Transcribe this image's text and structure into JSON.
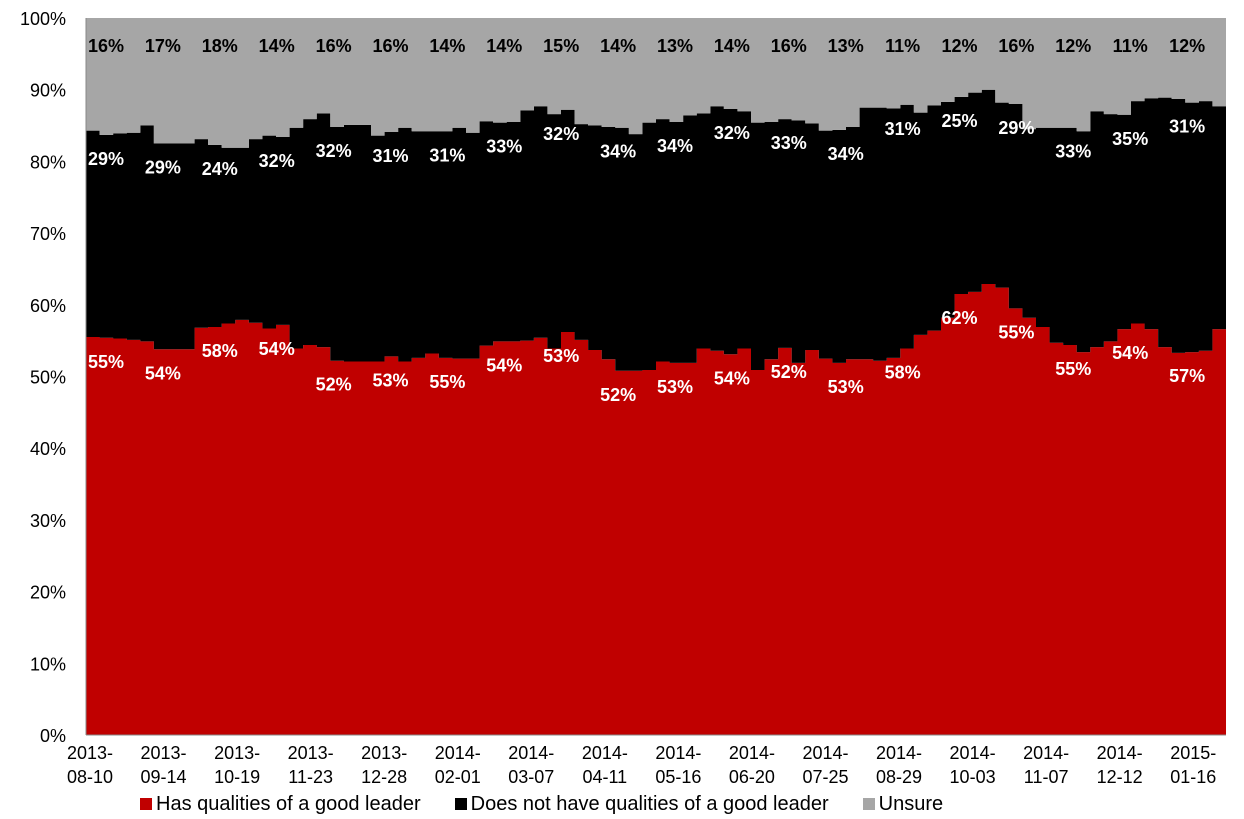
{
  "chart_data": {
    "type": "area",
    "stacked": true,
    "ylim": [
      0,
      100
    ],
    "yticks": [
      "0%",
      "10%",
      "20%",
      "30%",
      "40%",
      "50%",
      "60%",
      "70%",
      "80%",
      "90%",
      "100%"
    ],
    "x_tick_labels": [
      [
        "2013-",
        "08-10"
      ],
      [
        "2013-",
        "09-14"
      ],
      [
        "2013-",
        "10-19"
      ],
      [
        "2013-",
        "11-23"
      ],
      [
        "2013-",
        "12-28"
      ],
      [
        "2014-",
        "02-01"
      ],
      [
        "2014-",
        "03-07"
      ],
      [
        "2014-",
        "04-11"
      ],
      [
        "2014-",
        "05-16"
      ],
      [
        "2014-",
        "06-20"
      ],
      [
        "2014-",
        "07-25"
      ],
      [
        "2014-",
        "08-29"
      ],
      [
        "2014-",
        "10-03"
      ],
      [
        "2014-",
        "11-07"
      ],
      [
        "2014-",
        "12-12"
      ],
      [
        "2015-",
        "01-16"
      ]
    ],
    "colors": {
      "has": "#c00000",
      "not": "#000000",
      "unsure": "#a6a6a6"
    },
    "series": [
      {
        "name": "Has qualities of a good leader",
        "values": [
          55.5,
          55.4,
          55.3,
          55.1,
          54.9,
          53.8,
          53.8,
          53.8,
          56.8,
          56.9,
          57.4,
          57.9,
          57.5,
          56.7,
          57.2,
          53.9,
          54.4,
          54.1,
          52.2,
          52.1,
          52.1,
          52.1,
          52.8,
          52.1,
          52.6,
          53.2,
          52.6,
          52.5,
          52.5,
          54.3,
          54.9,
          54.9,
          55.0,
          55.4,
          53.9,
          56.2,
          55.1,
          53.7,
          52.4,
          50.8,
          50.8,
          50.9,
          52.1,
          51.9,
          51.9,
          53.9,
          53.6,
          53.1,
          53.9,
          50.9,
          52.4,
          54.0,
          51.9,
          53.7,
          52.5,
          51.9,
          52.4,
          52.4,
          52.2,
          52.6,
          53.9,
          55.8,
          56.4,
          58.2,
          61.5,
          61.8,
          62.9,
          62.4,
          59.5,
          58.2,
          56.9,
          54.7,
          54.4,
          53.4,
          54.1,
          54.9,
          56.6,
          57.4,
          56.6,
          54.1,
          53.3,
          53.4,
          53.6,
          56.6
        ],
        "labels": [
          "55%",
          "54%",
          "58%",
          "54%",
          "52%",
          "53%",
          "55%",
          "54%",
          "53%",
          "52%",
          "53%",
          "54%",
          "52%",
          "53%",
          "58%",
          "62%",
          "55%",
          "55%",
          "54%",
          "57%"
        ]
      },
      {
        "name": "Does not have qualities of a good leader",
        "values": [
          28.8,
          28.3,
          28.6,
          28.9,
          30.1,
          28.7,
          28.7,
          28.7,
          26.3,
          25.4,
          24.5,
          24.0,
          25.6,
          26.9,
          26.2,
          30.8,
          31.5,
          32.6,
          32.6,
          33.0,
          33.0,
          31.5,
          31.3,
          32.6,
          31.6,
          31.0,
          31.6,
          32.2,
          31.5,
          31.3,
          30.5,
          30.6,
          32.1,
          32.3,
          32.7,
          31.0,
          30.1,
          31.3,
          32.4,
          33.9,
          33.0,
          34.5,
          33.8,
          33.6,
          34.5,
          32.8,
          34.1,
          34.2,
          33.1,
          34.5,
          33.1,
          31.9,
          33.8,
          31.6,
          31.8,
          32.5,
          32.4,
          35.1,
          35.3,
          34.8,
          34.0,
          31.0,
          31.4,
          30.1,
          27.5,
          27.8,
          27.1,
          25.8,
          28.5,
          26.3,
          27.8,
          30.0,
          30.3,
          30.8,
          32.9,
          31.7,
          29.9,
          31.0,
          32.2,
          34.8,
          35.4,
          34.8,
          34.8,
          31.1
        ],
        "labels": [
          "29%",
          "29%",
          "24%",
          "32%",
          "32%",
          "31%",
          "31%",
          "33%",
          "32%",
          "34%",
          "34%",
          "32%",
          "33%",
          "34%",
          "31%",
          "25%",
          "29%",
          "33%",
          "35%",
          "31%"
        ]
      },
      {
        "name": "Unsure",
        "values": [
          15.7,
          16.3,
          16.1,
          16.0,
          15.0,
          17.5,
          17.5,
          17.5,
          16.9,
          17.7,
          18.1,
          18.1,
          16.9,
          16.4,
          16.6,
          15.3,
          14.1,
          13.3,
          15.2,
          14.9,
          14.9,
          16.4,
          15.9,
          15.3,
          15.8,
          15.8,
          15.8,
          15.3,
          16.0,
          14.4,
          14.6,
          14.5,
          12.9,
          12.3,
          13.4,
          12.8,
          14.8,
          15.0,
          15.2,
          15.3,
          16.2,
          14.6,
          14.1,
          14.5,
          13.6,
          13.3,
          12.3,
          12.7,
          13.0,
          14.6,
          14.5,
          14.1,
          14.3,
          14.7,
          15.7,
          15.6,
          15.2,
          12.5,
          12.5,
          12.6,
          12.1,
          13.2,
          12.2,
          11.7,
          11.0,
          10.4,
          10.0,
          11.8,
          12.0,
          15.5,
          15.3,
          15.3,
          15.3,
          15.8,
          13.0,
          13.4,
          13.5,
          11.6,
          11.2,
          11.1,
          11.3,
          11.8,
          11.6,
          12.3
        ],
        "labels": [
          "16%",
          "17%",
          "18%",
          "14%",
          "16%",
          "16%",
          "14%",
          "14%",
          "15%",
          "14%",
          "13%",
          "14%",
          "16%",
          "13%",
          "11%",
          "12%",
          "16%",
          "12%",
          "11%",
          "12%"
        ]
      }
    ]
  }
}
